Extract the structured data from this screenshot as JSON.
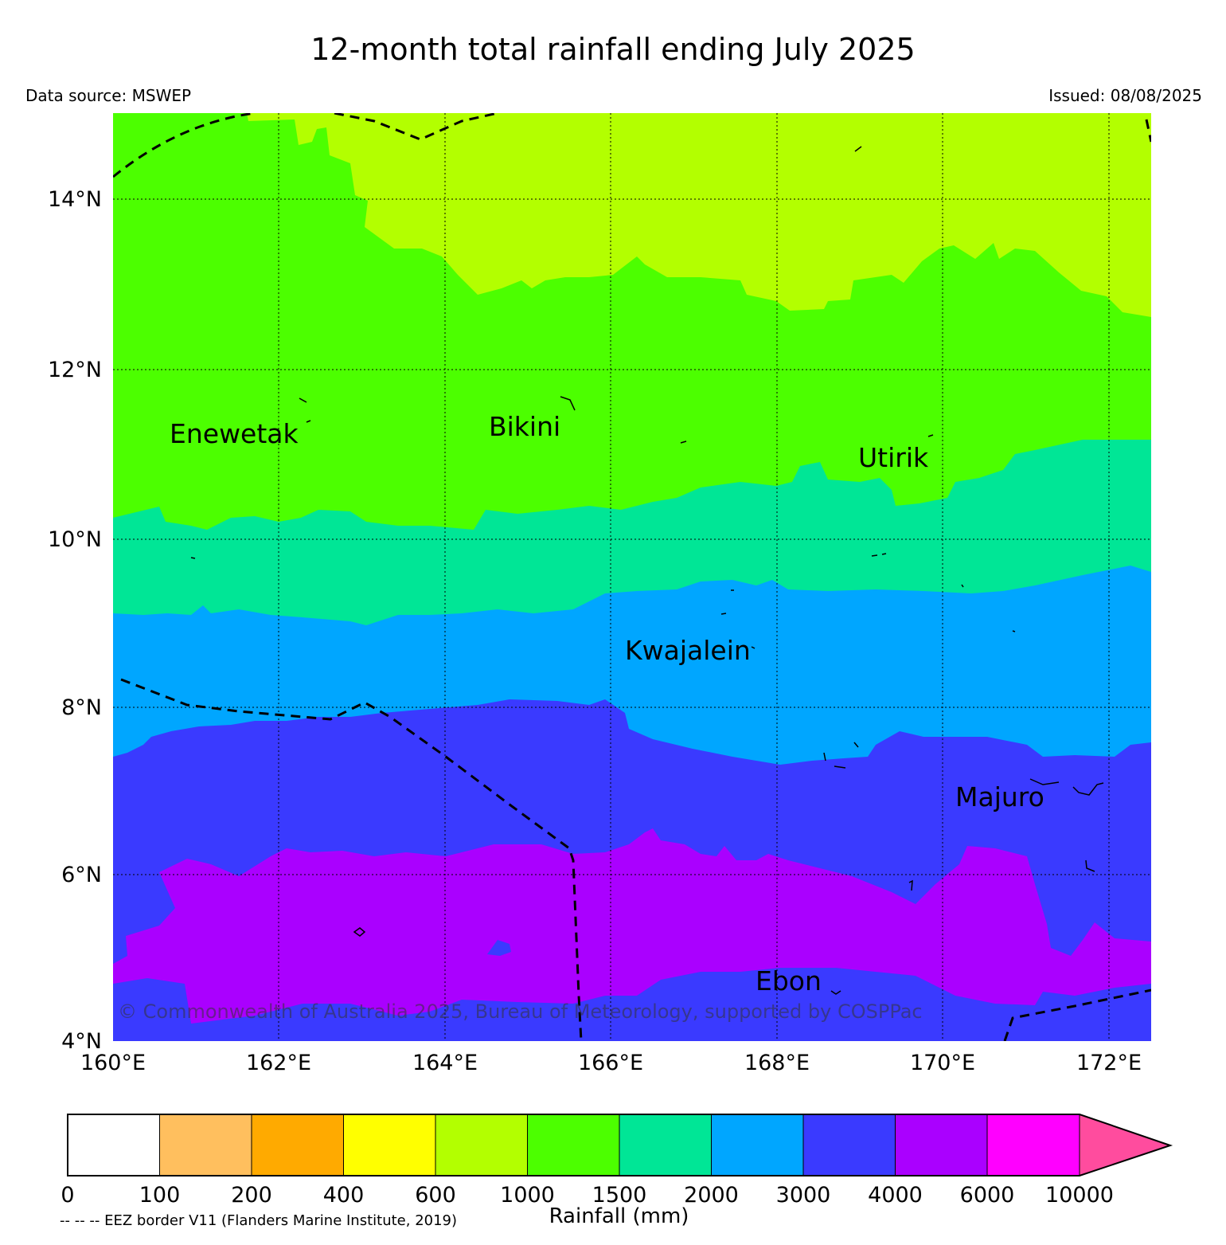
{
  "title": "12-month total rainfall ending July 2025",
  "data_source": "Data source: MSWEP",
  "issued": "Issued: 08/08/2025",
  "copyright": "© Commonwealth of Australia 2025, Bureau of Meteorology, supported by COSPPac",
  "eez_note": "-- -- -- EEZ border V11 (Flanders Marine Institute, 2019)",
  "map": {
    "lon_range": [
      160,
      172.5
    ],
    "lat_range": [
      4,
      15
    ],
    "lon_ticks": [
      "160°E",
      "162°E",
      "164°E",
      "166°E",
      "168°E",
      "170°E",
      "172°E"
    ],
    "lat_ticks": [
      "4°N",
      "6°N",
      "8°N",
      "10°N",
      "12°N",
      "14°N"
    ],
    "gridlines": true,
    "places": [
      {
        "name": "Enewetak",
        "lon": 162.3,
        "lat": 11.2
      },
      {
        "name": "Bikini",
        "lon": 165.4,
        "lat": 11.3
      },
      {
        "name": "Utirik",
        "lon": 169.4,
        "lat": 10.9
      },
      {
        "name": "Kwajalein",
        "lon": 167.4,
        "lat": 8.7
      },
      {
        "name": "Majuro",
        "lon": 171.1,
        "lat": 6.9
      },
      {
        "name": "Ebon",
        "lon": 168.7,
        "lat": 4.7
      }
    ]
  },
  "colorbar": {
    "label": "Rainfall (mm)",
    "levels": [
      "0",
      "100",
      "200",
      "400",
      "600",
      "1000",
      "1500",
      "2000",
      "3000",
      "4000",
      "6000",
      "10000"
    ],
    "colors": [
      "#ffffff",
      "#ffbf5e",
      "#ffaa00",
      "#ffff00",
      "#b3ff00",
      "#4cff00",
      "#00e696",
      "#00a6ff",
      "#3a3aff",
      "#aa00ff",
      "#ff00ff",
      "#ff4c9e"
    ]
  },
  "chart_data": {
    "type": "heatmap",
    "title": "12-month total rainfall ending July 2025",
    "xlabel": "",
    "ylabel": "",
    "xlim": [
      160,
      172.5
    ],
    "ylim": [
      4,
      15
    ],
    "zlabel": "Rainfall (mm)",
    "bands_by_latitude": [
      {
        "range_mm": "600-1000",
        "lat_from": 13.0,
        "lat_to": 15.0
      },
      {
        "range_mm": "1000-1500",
        "lat_from": 10.3,
        "lat_to": 13.0
      },
      {
        "range_mm": "1500-2000",
        "lat_from": 9.1,
        "lat_to": 10.3
      },
      {
        "range_mm": "2000-3000",
        "lat_from": 7.6,
        "lat_to": 9.1
      },
      {
        "range_mm": "3000-4000",
        "lat_from": 5.8,
        "lat_to": 7.6
      },
      {
        "range_mm": "4000-6000",
        "lat_from": 4.6,
        "lat_to": 5.8
      }
    ]
  }
}
